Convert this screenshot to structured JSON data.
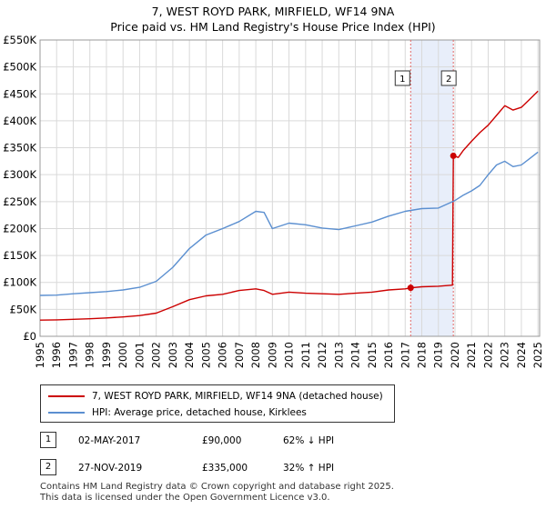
{
  "title": {
    "line1": "7, WEST ROYD PARK, MIRFIELD, WF14 9NA",
    "line2": "Price paid vs. HM Land Registry's House Price Index (HPI)"
  },
  "colors": {
    "property": "#cc0000",
    "hpi": "#5b8fd0",
    "grid": "#d9d9d9",
    "shade": "#e8eefa",
    "vline": "#e06666"
  },
  "legend": {
    "property_label": "7, WEST ROYD PARK, MIRFIELD, WF14 9NA (detached house)",
    "hpi_label": "HPI: Average price, detached house, Kirklees"
  },
  "sales": [
    {
      "num": "1",
      "date": "02-MAY-2017",
      "price": "£90,000",
      "hpi": "62% ↓ HPI"
    },
    {
      "num": "2",
      "date": "27-NOV-2019",
      "price": "£335,000",
      "hpi": "32% ↑ HPI"
    }
  ],
  "footer": {
    "line1": "Contains HM Land Registry data © Crown copyright and database right 2025.",
    "line2": "This data is licensed under the Open Government Licence v3.0."
  },
  "chart_data": {
    "type": "line",
    "title": "7, WEST ROYD PARK, MIRFIELD, WF14 9NA",
    "subtitle": "Price paid vs. HM Land Registry's House Price Index (HPI)",
    "xlabel": "",
    "ylabel": "",
    "xlim": [
      1995,
      2025.1
    ],
    "ylim": [
      0,
      550000
    ],
    "grid": true,
    "legend_position": "bottom",
    "y_ticks": [
      0,
      50000,
      100000,
      150000,
      200000,
      250000,
      300000,
      350000,
      400000,
      450000,
      500000,
      550000
    ],
    "y_tick_labels": [
      "£0",
      "£50K",
      "£100K",
      "£150K",
      "£200K",
      "£250K",
      "£300K",
      "£350K",
      "£400K",
      "£450K",
      "£500K",
      "£550K"
    ],
    "x_ticks": [
      "1995",
      "1996",
      "1997",
      "1998",
      "1999",
      "2000",
      "2001",
      "2002",
      "2003",
      "2004",
      "2005",
      "2006",
      "2007",
      "2008",
      "2009",
      "2010",
      "2011",
      "2012",
      "2013",
      "2014",
      "2015",
      "2016",
      "2017",
      "2018",
      "2019",
      "2020",
      "2021",
      "2022",
      "2023",
      "2024",
      "2025"
    ],
    "shaded_range": [
      2017.33,
      2019.9
    ],
    "markers": [
      {
        "label": "1",
        "x": 2017.33,
        "y": 90000
      },
      {
        "label": "2",
        "x": 2019.9,
        "y": 335000
      }
    ],
    "series": [
      {
        "name": "7, WEST ROYD PARK, MIRFIELD, WF14 9NA (detached house)",
        "x": [
          1995,
          1996,
          1997,
          1998,
          1999,
          2000,
          2001,
          2002,
          2003,
          2004,
          2005,
          2006,
          2007,
          2008,
          2008.5,
          2009,
          2010,
          2011,
          2012,
          2013,
          2014,
          2015,
          2016,
          2017,
          2017.33,
          2018,
          2019,
          2019.85,
          2019.9,
          2020.2,
          2020.5,
          2021,
          2021.5,
          2022,
          2022.5,
          2023,
          2023.5,
          2024,
          2024.5,
          2025
        ],
        "values": [
          30000,
          30500,
          31500,
          32500,
          34000,
          36000,
          38500,
          43000,
          55000,
          68000,
          75000,
          78000,
          85000,
          88000,
          85000,
          78000,
          82000,
          80000,
          79000,
          78000,
          80000,
          82000,
          86000,
          88000,
          90000,
          92000,
          93000,
          95000,
          335000,
          332000,
          345000,
          362000,
          378000,
          392000,
          410000,
          428000,
          420000,
          425000,
          440000,
          455000
        ]
      },
      {
        "name": "HPI: Average price, detached house, Kirklees",
        "x": [
          1995,
          1996,
          1997,
          1998,
          1999,
          2000,
          2001,
          2002,
          2003,
          2004,
          2005,
          2006,
          2007,
          2008,
          2008.5,
          2009,
          2010,
          2011,
          2012,
          2013,
          2014,
          2015,
          2016,
          2017,
          2018,
          2019,
          2020,
          2020.5,
          2021,
          2021.5,
          2022,
          2022.5,
          2023,
          2023.5,
          2024,
          2024.5,
          2025
        ],
        "values": [
          76000,
          76500,
          79000,
          81000,
          83000,
          86000,
          91000,
          102000,
          128000,
          163000,
          188000,
          200000,
          213000,
          232000,
          230000,
          200000,
          210000,
          207000,
          201000,
          198000,
          205000,
          212000,
          223000,
          232000,
          237000,
          238000,
          252000,
          262000,
          270000,
          280000,
          300000,
          318000,
          325000,
          315000,
          318000,
          330000,
          342000
        ]
      }
    ]
  }
}
